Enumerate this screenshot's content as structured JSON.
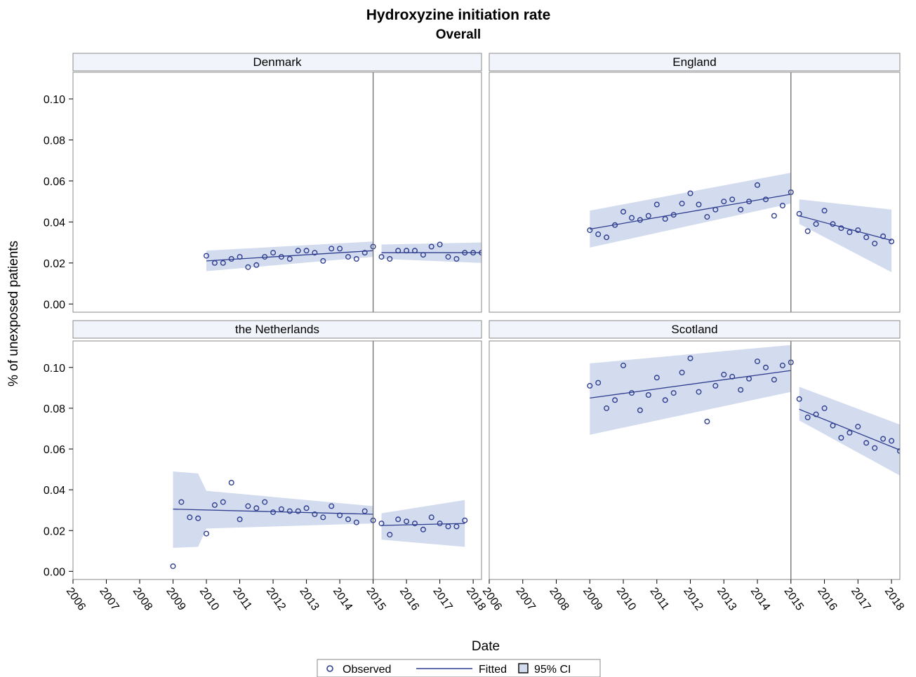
{
  "chart_data": {
    "type": "scatter",
    "title": "Hydroxyzine initiation rate",
    "subtitle": "Overall",
    "xlabel": "Date",
    "ylabel": "% of unexposed patients",
    "xlim": [
      2006,
      2018.25
    ],
    "ylim": [
      -0.004,
      0.113
    ],
    "x_ticks": [
      "2006",
      "2007",
      "2008",
      "2009",
      "2010",
      "2011",
      "2012",
      "2013",
      "2014",
      "2015",
      "2016",
      "2017",
      "2018"
    ],
    "y_ticks": [
      "0.00",
      "0.02",
      "0.04",
      "0.06",
      "0.08",
      "0.10"
    ],
    "y_tick_values": [
      0.0,
      0.02,
      0.04,
      0.06,
      0.08,
      0.1
    ],
    "intervention_x": 2015,
    "grid": false,
    "colors": {
      "marker": "#2e3d8f",
      "line": "#2e3d8f",
      "ci_band": "#d3dcee",
      "strip_bg": "#f2f4fb",
      "frame": "#8a8a8a",
      "vline": "#6b6b6b"
    },
    "legend": {
      "position": "bottom",
      "entries": [
        {
          "label": "Observed",
          "symbol": "circle"
        },
        {
          "label": "Fitted",
          "symbol": "line"
        },
        {
          "label": "95% CI",
          "symbol": "square"
        }
      ]
    },
    "panels": [
      {
        "name": "Denmark",
        "observed": {
          "x": [
            2010,
            2010.25,
            2010.5,
            2010.75,
            2011,
            2011.25,
            2011.5,
            2011.75,
            2012,
            2012.25,
            2012.5,
            2012.75,
            2013,
            2013.25,
            2013.5,
            2013.75,
            2014,
            2014.25,
            2014.5,
            2014.75,
            2015,
            2015.25,
            2015.5,
            2015.75,
            2016,
            2016.25,
            2016.5,
            2016.75,
            2017,
            2017.25,
            2017.5,
            2017.75,
            2018,
            2018.25
          ],
          "y": [
            0.0235,
            0.02,
            0.02,
            0.022,
            0.023,
            0.018,
            0.019,
            0.023,
            0.025,
            0.023,
            0.022,
            0.026,
            0.026,
            0.025,
            0.021,
            0.027,
            0.027,
            0.023,
            0.022,
            0.025,
            0.028,
            0.023,
            0.022,
            0.026,
            0.026,
            0.026,
            0.024,
            0.028,
            0.029,
            0.023,
            0.022,
            0.025,
            0.025,
            0.025
          ]
        },
        "fitted": [
          {
            "x": [
              2010,
              2015
            ],
            "y": [
              0.021,
              0.026
            ]
          },
          {
            "x": [
              2015.25,
              2018.25
            ],
            "y": [
              0.025,
              0.025
            ]
          }
        ],
        "ci": [
          {
            "x": [
              2010,
              2015
            ],
            "lower": [
              0.016,
              0.023
            ],
            "upper": [
              0.026,
              0.0305
            ]
          },
          {
            "x": [
              2015.25,
              2018.25
            ],
            "lower": [
              0.022,
              0.02
            ],
            "upper": [
              0.029,
              0.03
            ]
          }
        ]
      },
      {
        "name": "England",
        "observed": {
          "x": [
            2009,
            2009.25,
            2009.5,
            2009.75,
            2010,
            2010.25,
            2010.5,
            2010.75,
            2011,
            2011.25,
            2011.5,
            2011.75,
            2012,
            2012.25,
            2012.5,
            2012.75,
            2013,
            2013.25,
            2013.5,
            2013.75,
            2014,
            2014.25,
            2014.5,
            2014.75,
            2015,
            2015.25,
            2015.5,
            2015.75,
            2016,
            2016.25,
            2016.5,
            2016.75,
            2017,
            2017.25,
            2017.5,
            2017.75,
            2018
          ],
          "y": [
            0.036,
            0.034,
            0.0325,
            0.0385,
            0.045,
            0.042,
            0.041,
            0.043,
            0.0485,
            0.0415,
            0.0435,
            0.049,
            0.054,
            0.0485,
            0.0425,
            0.046,
            0.05,
            0.051,
            0.046,
            0.05,
            0.058,
            0.051,
            0.043,
            0.048,
            0.0545,
            0.044,
            0.0355,
            0.039,
            0.0455,
            0.039,
            0.037,
            0.035,
            0.036,
            0.0325,
            0.0295,
            0.033,
            0.0305
          ]
        },
        "fitted": [
          {
            "x": [
              2009,
              2015
            ],
            "y": [
              0.0365,
              0.0535
            ]
          },
          {
            "x": [
              2015.25,
              2018
            ],
            "y": [
              0.043,
              0.031
            ]
          }
        ],
        "ci": [
          {
            "x": [
              2009,
              2015
            ],
            "lower": [
              0.0275,
              0.049
            ],
            "upper": [
              0.0455,
              0.064
            ]
          },
          {
            "x": [
              2015.25,
              2018
            ],
            "lower": [
              0.039,
              0.0155
            ],
            "upper": [
              0.051,
              0.046
            ]
          }
        ]
      },
      {
        "name": "the Netherlands",
        "observed": {
          "x": [
            2009,
            2009.25,
            2009.5,
            2009.75,
            2010,
            2010.25,
            2010.5,
            2010.75,
            2011,
            2011.25,
            2011.5,
            2011.75,
            2012,
            2012.25,
            2012.5,
            2012.75,
            2013,
            2013.25,
            2013.5,
            2013.75,
            2014,
            2014.25,
            2014.5,
            2014.75,
            2015,
            2015.25,
            2015.5,
            2015.75,
            2016,
            2016.25,
            2016.5,
            2016.75,
            2017,
            2017.25,
            2017.5,
            2017.75
          ],
          "y": [
            0.0025,
            0.034,
            0.0265,
            0.026,
            0.0185,
            0.0325,
            0.034,
            0.0435,
            0.0255,
            0.032,
            0.031,
            0.034,
            0.029,
            0.0305,
            0.0295,
            0.0295,
            0.031,
            0.028,
            0.0265,
            0.032,
            0.0275,
            0.0255,
            0.024,
            0.0295,
            0.025,
            0.0235,
            0.018,
            0.0255,
            0.0245,
            0.0235,
            0.0205,
            0.0265,
            0.0235,
            0.022,
            0.022,
            0.025
          ]
        },
        "fitted": [
          {
            "x": [
              2009,
              2015
            ],
            "y": [
              0.0305,
              0.028
            ]
          },
          {
            "x": [
              2015.25,
              2017.75
            ],
            "y": [
              0.0225,
              0.0235
            ]
          }
        ],
        "ci": [
          {
            "x": [
              2009,
              2009.75,
              2010,
              2015
            ],
            "lower": [
              0.0115,
              0.012,
              0.021,
              0.0235
            ],
            "upper": [
              0.049,
              0.048,
              0.0395,
              0.032
            ]
          },
          {
            "x": [
              2015.25,
              2017.75
            ],
            "lower": [
              0.0155,
              0.012
            ],
            "upper": [
              0.0285,
              0.035
            ]
          }
        ]
      },
      {
        "name": "Scotland",
        "observed": {
          "x": [
            2009,
            2009.25,
            2009.5,
            2009.75,
            2010,
            2010.25,
            2010.5,
            2010.75,
            2011,
            2011.25,
            2011.5,
            2011.75,
            2012,
            2012.25,
            2012.5,
            2012.75,
            2013,
            2013.25,
            2013.5,
            2013.75,
            2014,
            2014.25,
            2014.5,
            2014.75,
            2015,
            2015.25,
            2015.5,
            2015.75,
            2016,
            2016.25,
            2016.5,
            2016.75,
            2017,
            2017.25,
            2017.5,
            2017.75,
            2018,
            2018.25
          ],
          "y": [
            0.091,
            0.0925,
            0.08,
            0.084,
            0.101,
            0.0875,
            0.079,
            0.0865,
            0.095,
            0.084,
            0.0875,
            0.0975,
            0.1045,
            0.088,
            0.0735,
            0.091,
            0.0965,
            0.0955,
            0.089,
            0.0945,
            0.103,
            0.1,
            0.094,
            0.101,
            0.1025,
            0.0845,
            0.0755,
            0.077,
            0.08,
            0.0715,
            0.0655,
            0.068,
            0.071,
            0.063,
            0.0605,
            0.065,
            0.064,
            0.059
          ]
        },
        "fitted": [
          {
            "x": [
              2009,
              2015
            ],
            "y": [
              0.085,
              0.0985
            ]
          },
          {
            "x": [
              2015.25,
              2018.25
            ],
            "y": [
              0.0795,
              0.0595
            ]
          }
        ],
        "ci": [
          {
            "x": [
              2009,
              2015
            ],
            "lower": [
              0.067,
              0.088
            ],
            "upper": [
              0.102,
              0.111
            ]
          },
          {
            "x": [
              2015.25,
              2018.25
            ],
            "lower": [
              0.074,
              0.047
            ],
            "upper": [
              0.0905,
              0.072
            ]
          }
        ]
      }
    ]
  }
}
